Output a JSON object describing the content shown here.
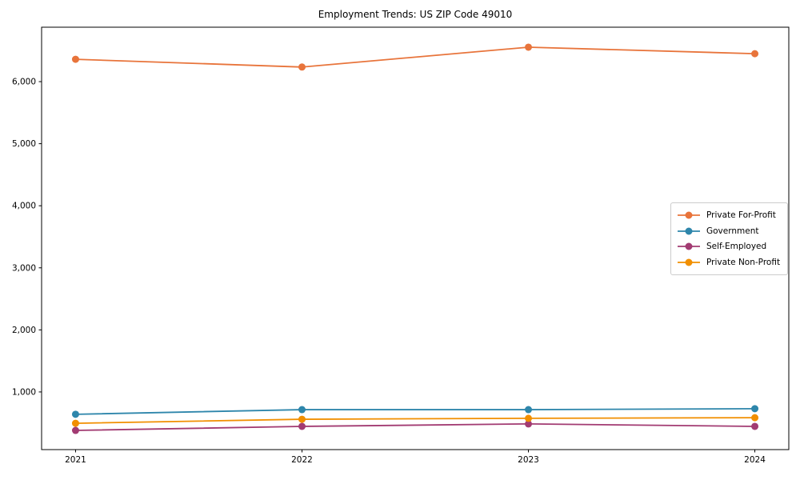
{
  "chart_data": {
    "type": "line",
    "title": "Employment Trends: US ZIP Code 49010",
    "x": [
      2021,
      2022,
      2023,
      2024
    ],
    "xtick_labels": [
      "2021",
      "2022",
      "2023",
      "2024"
    ],
    "series": [
      {
        "name": "Private For-Profit",
        "color": "#e8743b",
        "values": [
          6360,
          6235,
          6555,
          6450
        ]
      },
      {
        "name": "Government",
        "color": "#2e86ab",
        "values": [
          640,
          715,
          715,
          730
        ]
      },
      {
        "name": "Self-Employed",
        "color": "#a23b72",
        "values": [
          380,
          445,
          485,
          445
        ]
      },
      {
        "name": "Private Non-Profit",
        "color": "#f18f01",
        "values": [
          495,
          560,
          575,
          585
        ]
      }
    ],
    "yticks": [
      1000,
      2000,
      3000,
      4000,
      5000,
      6000
    ],
    "ytick_labels": [
      "1,000",
      "2,000",
      "3,000",
      "4,000",
      "5,000",
      "6,000"
    ],
    "ylim": [
      71,
      6877
    ],
    "xlim": [
      -0.15,
      3.15
    ],
    "grid": false,
    "marker": "circle",
    "legend_position": "center right",
    "axis_color": "#000000",
    "tick_label_color": "#000000"
  }
}
